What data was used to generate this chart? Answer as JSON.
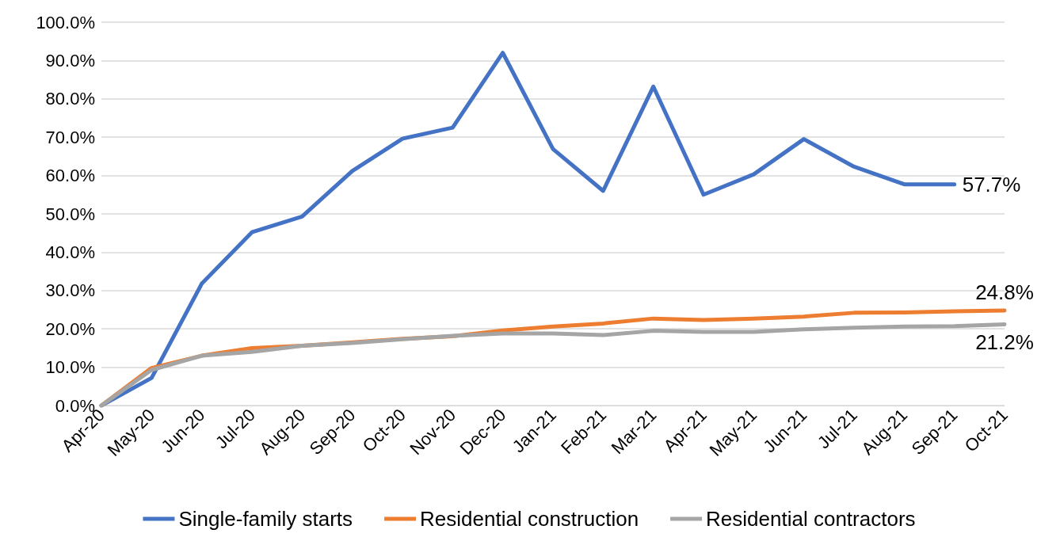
{
  "chart_data": {
    "type": "line",
    "categories": [
      "Apr-20",
      "May-20",
      "Jun-20",
      "Jul-20",
      "Aug-20",
      "Sep-20",
      "Oct-20",
      "Nov-20",
      "Dec-20",
      "Jan-21",
      "Feb-21",
      "Mar-21",
      "Apr-21",
      "May-21",
      "Jun-21",
      "Jul-21",
      "Aug-21",
      "Sep-21",
      "Oct-21"
    ],
    "series": [
      {
        "name": "Single-family starts",
        "color": "#4472c4",
        "values": [
          0,
          7.2,
          31.8,
          45.2,
          49.3,
          61.2,
          69.6,
          72.5,
          92.0,
          66.9,
          56.0,
          83.2,
          55.0,
          60.3,
          69.5,
          62.3,
          57.7,
          57.7,
          null
        ],
        "value_labels": [
          null,
          null,
          null,
          null,
          null,
          null,
          null,
          null,
          null,
          null,
          null,
          null,
          null,
          null,
          null,
          null,
          null,
          "57.7%",
          null
        ]
      },
      {
        "name": "Residential construction",
        "color": "#ed7d31",
        "values": [
          0,
          9.8,
          13.0,
          15.0,
          15.6,
          16.5,
          17.4,
          18.1,
          19.6,
          20.6,
          21.4,
          22.7,
          22.3,
          22.7,
          23.2,
          24.2,
          24.3,
          24.6,
          24.8
        ],
        "value_labels": [
          null,
          null,
          null,
          null,
          null,
          null,
          null,
          null,
          null,
          null,
          null,
          null,
          null,
          null,
          null,
          null,
          null,
          null,
          "24.8%"
        ]
      },
      {
        "name": "Residential contractors",
        "color": "#a5a5a5",
        "values": [
          0,
          9.3,
          13.0,
          14.0,
          15.6,
          16.3,
          17.3,
          18.2,
          18.8,
          18.8,
          18.4,
          19.5,
          19.2,
          19.2,
          19.9,
          20.3,
          20.6,
          20.7,
          21.2
        ],
        "value_labels": [
          null,
          null,
          null,
          null,
          null,
          null,
          null,
          null,
          null,
          null,
          null,
          null,
          null,
          null,
          null,
          null,
          null,
          null,
          "21.2%"
        ]
      }
    ],
    "ylim": [
      0,
      100
    ],
    "yticks": [
      {
        "value": 0,
        "label": "0.0%"
      },
      {
        "value": 10,
        "label": "10.0%"
      },
      {
        "value": 20,
        "label": "20.0%"
      },
      {
        "value": 30,
        "label": "30.0%"
      },
      {
        "value": 40,
        "label": "40.0%"
      },
      {
        "value": 50,
        "label": "50.0%"
      },
      {
        "value": 60,
        "label": "60.0%"
      },
      {
        "value": 70,
        "label": "70.0%"
      },
      {
        "value": 80,
        "label": "80.0%"
      },
      {
        "value": 90,
        "label": "90.0%"
      },
      {
        "value": 100,
        "label": "100.0%"
      }
    ],
    "grid": "y",
    "legend": "bottom",
    "marker": "none",
    "line_style": "solid"
  }
}
